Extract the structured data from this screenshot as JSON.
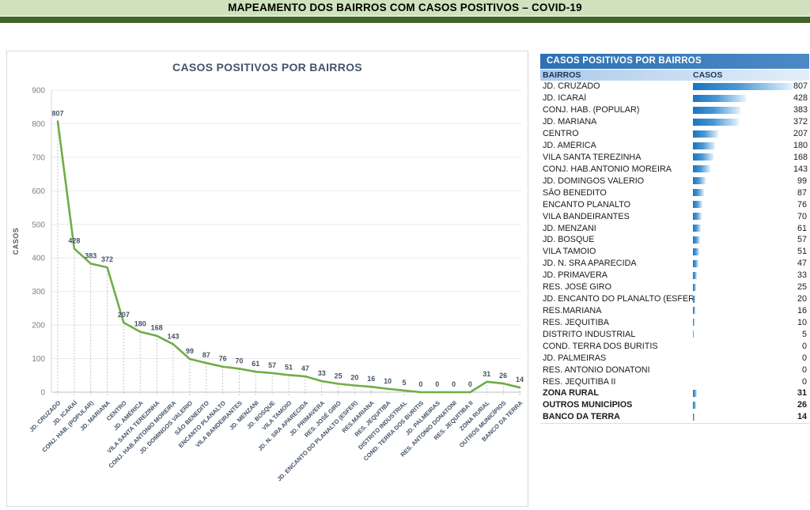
{
  "page": {
    "title": "MAPEAMENTO DOS BAIRROS COM CASOS POSITIVOS – COVID-19"
  },
  "chart_data": {
    "type": "line",
    "title": "CASOS POSITIVOS POR BAIRROS",
    "xlabel": "",
    "ylabel": "CASOS",
    "ylim": [
      0,
      900
    ],
    "ytick_step": 100,
    "grid": true,
    "legend": "none",
    "line_color": "#70AD47",
    "label_color": "#44546A",
    "categories": [
      "JD. CRUZADO",
      "JD. ICARAÍ",
      "CONJ. HAB. (POPULAR)",
      "JD. MARIANA",
      "CENTRO",
      "JD. AMÉRICA",
      "VILA SANTA TEREZINHA",
      "CONJ. HAB.ANTONIO MOREIRA",
      "JD. DOMINGOS VALERIO",
      "SÃO BENEDITO",
      "ENCANTO PLANALTO",
      "VILA BANDEIRANTES",
      "JD. MENZANI",
      "JD. BOSQUE",
      "VILA TAMOIO",
      "JD. N. SRA APARECIDA",
      "JD. PRIMAVERA",
      "RES. JOSÉ GIRO",
      "JD. ENCANTO DO PLANALTO (ESFER)",
      "RES.MARIANA",
      "RES. JEQUITIBA",
      "DISTRITO INDUSTRIAL",
      "COND. TERRA DOS BURITIS",
      "JD. PALMEIRAS",
      "RES. ANTONIO DONATONI",
      "RES. JEQUITIBA II",
      "ZONA RURAL",
      "OUTROS MUNICÍPIOS",
      "BANCO DA TERRA"
    ],
    "values": [
      807,
      428,
      383,
      372,
      207,
      180,
      168,
      143,
      99,
      87,
      76,
      70,
      61,
      57,
      51,
      47,
      33,
      25,
      20,
      16,
      10,
      5,
      0,
      0,
      0,
      0,
      31,
      26,
      14
    ]
  },
  "table": {
    "title": "CASOS POSITIVOS POR BAIRROS",
    "columns": [
      "BAIRROS",
      "CASOS"
    ],
    "bold_from_index": 26,
    "bar_color_start": "#1b74c0",
    "bar_color_end": "#e9f3fb"
  },
  "colors": {
    "banner_bg": "#cfe2bd",
    "banner_strip": "#42662a",
    "table_title_bg": "#2d71b3",
    "table_head_bg": "#abcbe9",
    "chart_line": "#70AD47"
  }
}
